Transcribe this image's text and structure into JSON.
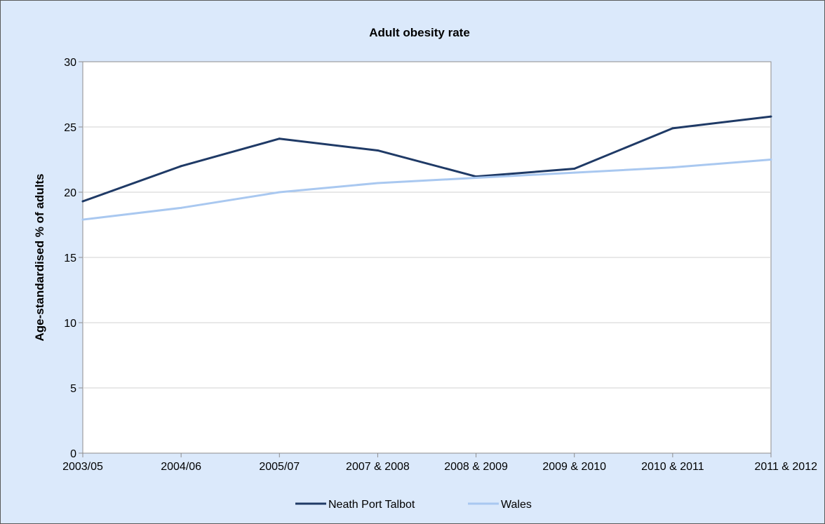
{
  "chart_data": {
    "type": "line",
    "title": "Adult obesity rate",
    "ylabel": "Age-standardised % of adults",
    "xlabel": "",
    "categories": [
      "2003/05",
      "2004/06",
      "2005/07",
      "2007 & 2008",
      "2008 & 2009",
      "2009 & 2010",
      "2010 & 2011",
      "2011 & 2012"
    ],
    "ylim": [
      0,
      30
    ],
    "yticks": [
      0,
      5,
      10,
      15,
      20,
      25,
      30
    ],
    "grid": true,
    "legend": "bottom",
    "series": [
      {
        "name": "Neath Port Talbot",
        "color": "#1f3a66",
        "values": [
          19.3,
          22.0,
          24.1,
          23.2,
          21.2,
          21.8,
          24.9,
          25.8
        ]
      },
      {
        "name": "Wales",
        "color": "#a9c8f0",
        "values": [
          17.9,
          18.8,
          20.0,
          20.7,
          21.1,
          21.5,
          21.9,
          22.5
        ]
      }
    ]
  }
}
